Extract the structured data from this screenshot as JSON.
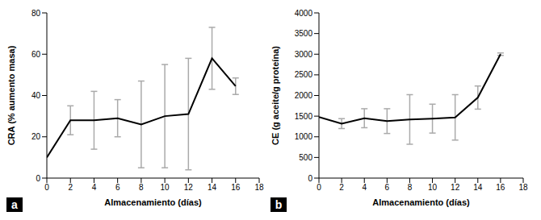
{
  "chart_data": [
    {
      "type": "line",
      "panel_label": "a",
      "xlabel": "Almacenamiento (días)",
      "ylabel": "CRA (% aumento masa)",
      "x": [
        0,
        2,
        4,
        6,
        8,
        10,
        12,
        14,
        16
      ],
      "values": [
        10,
        28,
        28,
        29,
        26,
        30,
        31,
        58,
        44.5
      ],
      "errors": [
        0,
        7,
        14,
        9,
        21,
        25,
        27,
        15,
        4
      ],
      "color": "#000000",
      "marker": "none",
      "xlim": [
        0,
        18
      ],
      "xticks": [
        0,
        2,
        4,
        6,
        8,
        10,
        12,
        14,
        16,
        18
      ],
      "ylim": [
        0,
        80
      ],
      "yticks": [
        0,
        20,
        40,
        60,
        80
      ],
      "grid": false
    },
    {
      "type": "line",
      "panel_label": "b",
      "xlabel": "Almacenamiento (días)",
      "ylabel": "CE (g aceite/g proteína)",
      "x": [
        0,
        2,
        4,
        6,
        8,
        10,
        12,
        14,
        16
      ],
      "values": [
        1480,
        1320,
        1450,
        1380,
        1420,
        1440,
        1470,
        1950,
        3000
      ],
      "errors": [
        0,
        120,
        230,
        300,
        600,
        350,
        550,
        280,
        30
      ],
      "color": "#000000",
      "marker": "none",
      "xlim": [
        0,
        18
      ],
      "xticks": [
        0,
        2,
        4,
        6,
        8,
        10,
        12,
        14,
        16,
        18
      ],
      "ylim": [
        0,
        4000
      ],
      "yticks": [
        0,
        500,
        1000,
        1500,
        2000,
        2500,
        3000,
        3500,
        4000
      ],
      "grid": false
    }
  ]
}
